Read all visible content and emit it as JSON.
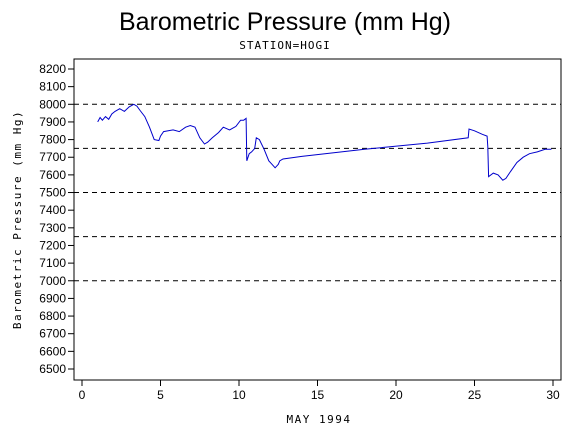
{
  "chart_data": {
    "type": "line",
    "title": "Barometric Pressure (mm Hg)",
    "subtitle": "STATION=HOGI",
    "xlabel": "MAY 1994",
    "ylabel": "Barometric Pressure (mm Hg)",
    "xlim": [
      0,
      30
    ],
    "ylim": [
      6500,
      8200
    ],
    "x_ticks": [
      0,
      5,
      10,
      15,
      20,
      25,
      30
    ],
    "y_ticks": [
      6500,
      6600,
      6700,
      6800,
      6900,
      7000,
      7100,
      7200,
      7300,
      7400,
      7500,
      7600,
      7700,
      7800,
      7900,
      8000,
      8100,
      8200
    ],
    "reference_lines": [
      8000,
      7750,
      7500,
      7250,
      7000
    ],
    "grid": false,
    "legend": "none",
    "colors": {
      "series": "#0000cc",
      "reference": "#000000",
      "axis": "#000000"
    },
    "series": [
      {
        "x": [
          1.0,
          1.15,
          1.3,
          1.5,
          1.7,
          1.9,
          2.1,
          2.4,
          2.7,
          3.0,
          3.3,
          3.5,
          3.7,
          4.0,
          4.3,
          4.6,
          4.9,
          5.0,
          5.2,
          5.5,
          5.8,
          6.2,
          6.6,
          6.9,
          7.2,
          7.5,
          7.8,
          8.0,
          8.3,
          8.7,
          9.0,
          9.4,
          9.8,
          10.1,
          10.3,
          10.45,
          10.5,
          10.65,
          10.8,
          11.0,
          11.1,
          11.3,
          11.6,
          11.9,
          12.1,
          12.3,
          12.5,
          12.6,
          12.8,
          14.0,
          18.0,
          22.0,
          24.6,
          24.65,
          25.0,
          25.5,
          25.8,
          25.85,
          25.9,
          26.2,
          26.5,
          26.8,
          27.0,
          27.3,
          27.7,
          28.1,
          28.5,
          29.0,
          29.5,
          29.9
        ],
        "y": [
          7900,
          7925,
          7910,
          7930,
          7915,
          7945,
          7960,
          7975,
          7960,
          7985,
          8000,
          7990,
          7965,
          7930,
          7870,
          7800,
          7795,
          7820,
          7845,
          7850,
          7855,
          7845,
          7870,
          7880,
          7870,
          7810,
          7775,
          7785,
          7810,
          7840,
          7870,
          7855,
          7875,
          7910,
          7910,
          7920,
          7680,
          7720,
          7730,
          7750,
          7810,
          7800,
          7745,
          7680,
          7660,
          7640,
          7660,
          7680,
          7690,
          7705,
          7745,
          7780,
          7810,
          7860,
          7850,
          7830,
          7820,
          7760,
          7590,
          7610,
          7600,
          7570,
          7580,
          7620,
          7670,
          7700,
          7720,
          7730,
          7745,
          7745
        ]
      }
    ]
  }
}
